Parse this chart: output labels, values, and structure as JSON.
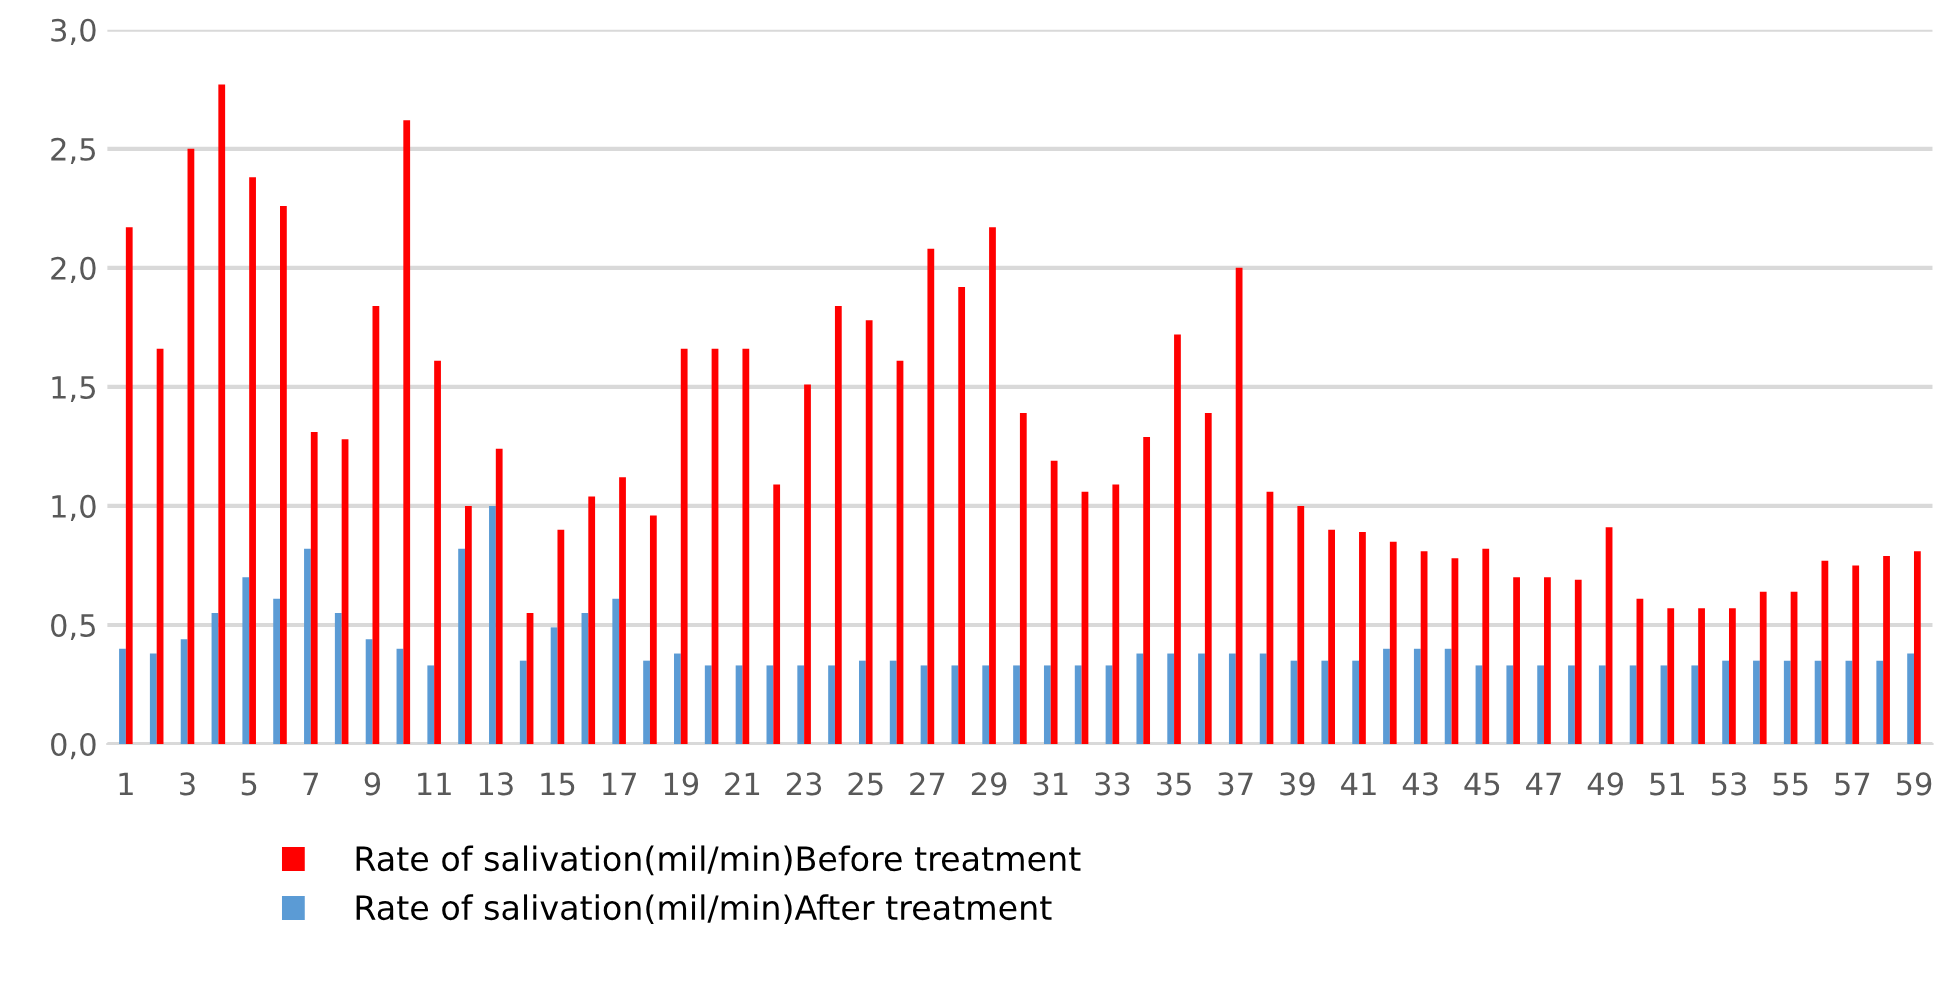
{
  "chart_data": {
    "type": "bar",
    "categories": [
      "1",
      null,
      "3",
      null,
      "5",
      null,
      "7",
      null,
      "9",
      null,
      "11",
      null,
      "13",
      null,
      "15",
      null,
      "17",
      null,
      "19",
      null,
      "21",
      null,
      "23",
      null,
      "25",
      null,
      "27",
      null,
      "29",
      null,
      "31",
      null,
      "33",
      null,
      "35",
      null,
      "37",
      null,
      "39",
      null,
      "41",
      null,
      "43",
      null,
      "45",
      null,
      "47",
      null,
      "49",
      null,
      "51",
      null,
      "53",
      null,
      "55",
      null,
      "57",
      null,
      "59"
    ],
    "series": [
      {
        "name": "Rate of salivation(mil/min)After treatment",
        "color": "#5b9bd5",
        "values": [
          0.4,
          0.38,
          0.44,
          0.55,
          0.7,
          0.61,
          0.82,
          0.55,
          0.44,
          0.4,
          0.33,
          0.82,
          1.0,
          0.35,
          0.49,
          0.55,
          0.61,
          0.35,
          0.38,
          0.33,
          0.33,
          0.33,
          0.33,
          0.33,
          0.35,
          0.35,
          0.33,
          0.33,
          0.33,
          0.33,
          0.33,
          0.33,
          0.33,
          0.38,
          0.38,
          0.38,
          0.38,
          0.38,
          0.35,
          0.35,
          0.35,
          0.4,
          0.4,
          0.4,
          0.33,
          0.33,
          0.33,
          0.33,
          0.33,
          0.33,
          0.33,
          0.33,
          0.35,
          0.35,
          0.35,
          0.35,
          0.35,
          0.35,
          0.38
        ]
      },
      {
        "name": "Rate of salivation(mil/min)Before treatment",
        "color": "#ff0000",
        "values": [
          2.17,
          1.66,
          2.5,
          2.77,
          2.38,
          2.26,
          1.31,
          1.28,
          1.84,
          2.62,
          1.61,
          1.0,
          1.24,
          0.55,
          0.9,
          1.04,
          1.12,
          0.96,
          1.66,
          1.66,
          1.66,
          1.09,
          1.51,
          1.84,
          1.78,
          1.61,
          2.08,
          1.92,
          2.17,
          1.39,
          1.19,
          1.06,
          1.09,
          1.29,
          1.72,
          1.39,
          2.0,
          1.06,
          1.0,
          0.9,
          0.89,
          0.85,
          0.81,
          0.78,
          0.82,
          0.7,
          0.7,
          0.69,
          0.91,
          0.61,
          0.57,
          0.57,
          0.57,
          0.64,
          0.64,
          0.77,
          0.75,
          0.79,
          0.81
        ]
      }
    ],
    "ylim": [
      0,
      3
    ],
    "yticks": [
      {
        "value": 0,
        "label": "0,0"
      },
      {
        "value": 0.5,
        "label": "0,5"
      },
      {
        "value": 1,
        "label": "1,0"
      },
      {
        "value": 1.5,
        "label": "1,5"
      },
      {
        "value": 2,
        "label": "2,0"
      },
      {
        "value": 2.5,
        "label": "2,5"
      },
      {
        "value": 3,
        "label": "3,0"
      }
    ],
    "grid": "y",
    "legend": "bottom left"
  }
}
